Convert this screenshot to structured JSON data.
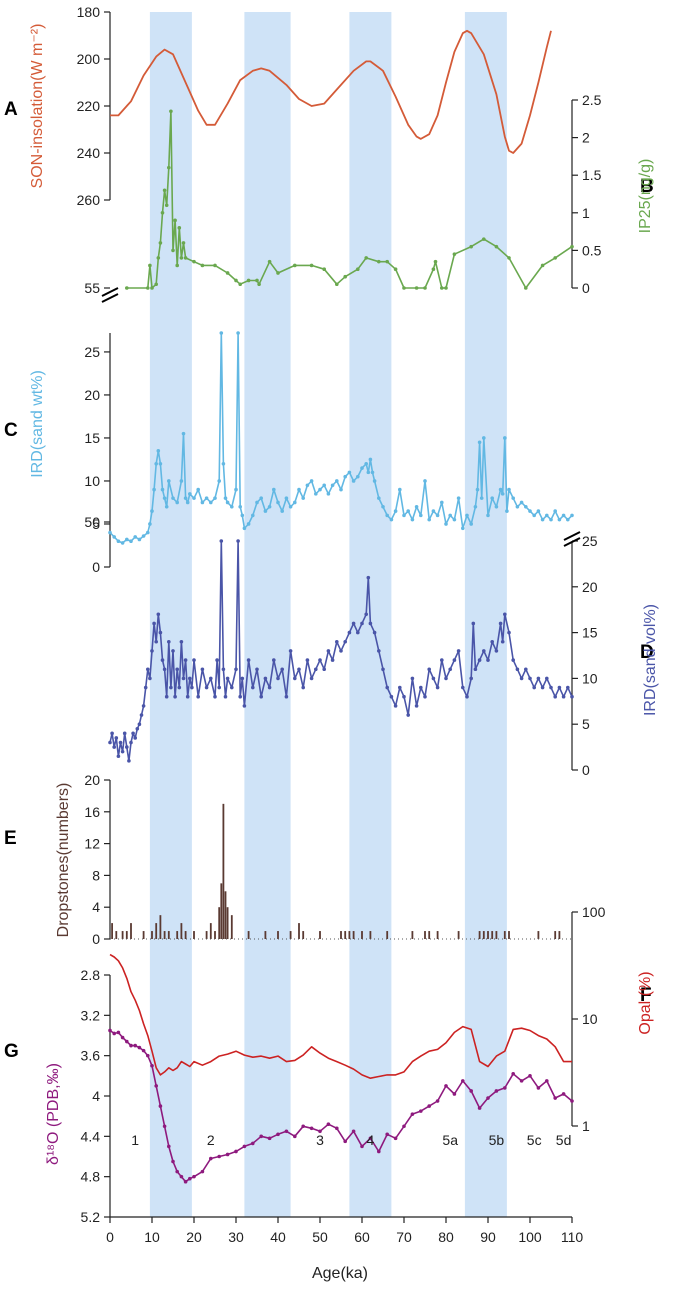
{
  "chart_data": [
    {
      "panel": "A",
      "type": "line",
      "ylabel": "SON-insolation(W m⁻²)",
      "y_reversed": true,
      "ylim": [
        180,
        260
      ],
      "yticks": [
        180,
        200,
        220,
        240,
        260
      ],
      "color": "#d45b38",
      "x": [
        0,
        2,
        5,
        8,
        11,
        13,
        15,
        18,
        21,
        23,
        25,
        28,
        31,
        34,
        36,
        38,
        42,
        45,
        48,
        51,
        54,
        58,
        61,
        62,
        65,
        68,
        71,
        73,
        74,
        76,
        78,
        80,
        82,
        84,
        85,
        86,
        89,
        92,
        94,
        95,
        96,
        98,
        100,
        102,
        104,
        105
      ],
      "y": [
        224,
        224,
        218,
        207,
        199,
        196,
        198,
        210,
        222,
        228,
        228,
        219,
        209,
        205,
        204,
        205,
        211,
        217,
        220,
        219,
        213,
        205,
        201,
        201,
        205,
        216,
        228,
        233,
        234,
        232,
        224,
        210,
        197,
        189,
        188,
        189,
        198,
        215,
        233,
        239,
        240,
        236,
        224,
        210,
        195,
        188
      ]
    },
    {
      "panel": "B",
      "type": "line",
      "ylabel": "IP25(ng/g)",
      "ylim": [
        0,
        2.5
      ],
      "yticks": [
        0,
        0.5,
        1,
        1.5,
        2,
        2.5
      ],
      "ytick_labels": [
        "0",
        "0.5",
        "1",
        "1.5",
        "2",
        "2.5"
      ],
      "color": "#6aa84f",
      "x": [
        4,
        9,
        9.5,
        10,
        11,
        11.5,
        12,
        12.5,
        13,
        13.5,
        14,
        14.5,
        15,
        15.5,
        16,
        16.5,
        17,
        17.5,
        18,
        20,
        22,
        25,
        28,
        30,
        31,
        33,
        35,
        35.5,
        38,
        40,
        44,
        48,
        51,
        54,
        56,
        59,
        61,
        64,
        66,
        68,
        70,
        73,
        75,
        77,
        77.5,
        79,
        80,
        82,
        86,
        89,
        92,
        95,
        99,
        103,
        106,
        110
      ],
      "y": [
        0,
        0,
        0.3,
        0,
        0.05,
        0.4,
        0.6,
        1.0,
        1.3,
        1.1,
        1.6,
        2.35,
        0.5,
        0.9,
        0.3,
        0.8,
        0.4,
        0.6,
        0.4,
        0.35,
        0.3,
        0.3,
        0.2,
        0.1,
        0.05,
        0.1,
        0.1,
        0.05,
        0.35,
        0.2,
        0.3,
        0.3,
        0.25,
        0.05,
        0.15,
        0.25,
        0.4,
        0.35,
        0.35,
        0.25,
        0,
        0,
        0,
        0.25,
        0.35,
        0,
        0,
        0.45,
        0.55,
        0.65,
        0.55,
        0.4,
        0,
        0.3,
        0.4,
        0.55
      ]
    },
    {
      "panel": "C",
      "type": "line",
      "ylabel": "IRD(sand wt%)",
      "ylim": [
        0,
        50
      ],
      "y_break": [
        28,
        55
      ],
      "yticks": [
        0,
        5,
        10,
        15,
        20,
        25,
        50,
        55
      ],
      "color": "#62b8e3",
      "x": [
        0,
        1,
        2,
        3,
        4,
        5,
        6,
        7,
        8,
        9,
        9.5,
        10,
        10.5,
        11,
        11.5,
        12,
        12.5,
        13,
        13.5,
        14,
        15,
        16,
        17,
        17.5,
        18,
        18.5,
        19,
        20,
        21,
        22,
        23,
        24,
        25,
        26,
        26.5,
        27,
        27.5,
        28,
        29,
        30,
        30.5,
        31,
        31.5,
        32,
        33,
        34,
        35,
        36,
        37,
        38,
        39,
        40,
        41,
        42,
        43,
        44,
        45,
        46,
        47,
        48,
        49,
        50,
        51,
        52,
        53,
        54,
        55,
        56,
        57,
        58,
        59,
        60,
        61,
        61.5,
        62,
        62.5,
        63,
        64,
        65,
        66,
        67,
        68,
        69,
        70,
        71,
        72,
        73,
        74,
        75,
        76,
        77,
        78,
        79,
        80,
        81,
        82,
        83,
        84,
        85,
        86,
        87,
        87.5,
        88,
        88.5,
        89,
        90,
        91,
        92,
        93,
        93.5,
        94,
        94.5,
        95,
        96,
        97,
        98,
        99,
        100,
        101,
        102,
        103,
        104,
        105,
        106,
        107,
        108,
        109,
        110
      ],
      "y": [
        4,
        3.5,
        3,
        2.8,
        3.2,
        3,
        3.5,
        3.2,
        3.6,
        4,
        5,
        6.5,
        9,
        12,
        13.5,
        12,
        9,
        8,
        7,
        10,
        8,
        7.5,
        10,
        15.5,
        8,
        7.5,
        8.5,
        8,
        9,
        7.5,
        8,
        7.5,
        8,
        10,
        29,
        12,
        8,
        7.5,
        7,
        9,
        28,
        7,
        6,
        4.5,
        5,
        6,
        7.5,
        8,
        6.5,
        7,
        9,
        7.5,
        6.5,
        8,
        7,
        7.5,
        9,
        8,
        9.5,
        10,
        8.5,
        9,
        9.5,
        8.5,
        9.5,
        10,
        9,
        10.5,
        11,
        10,
        10.5,
        11.5,
        12,
        11,
        12.5,
        11,
        10,
        8,
        7,
        6,
        5.5,
        6.5,
        9,
        6,
        6.5,
        5.5,
        7,
        6,
        10,
        5.5,
        6.5,
        6,
        7.5,
        5,
        6,
        5.5,
        8,
        4.5,
        6,
        5,
        7,
        9,
        14.5,
        8,
        15,
        6,
        8,
        7,
        9,
        8.5,
        15,
        6.5,
        9,
        8,
        7,
        7.5,
        7,
        6.5,
        6,
        6.5,
        5.5,
        6,
        5.5,
        6.5,
        5.5,
        6,
        5.5,
        6
      ]
    },
    {
      "panel": "D",
      "type": "line",
      "ylabel": "IRD(sand vol%)",
      "ylim": [
        0,
        25
      ],
      "yticks": [
        0,
        5,
        10,
        15,
        20,
        25
      ],
      "color": "#4a55a8",
      "x": [
        0,
        0.5,
        1,
        1.5,
        2,
        2.5,
        3,
        3.5,
        4,
        4.5,
        5,
        5.5,
        6,
        6.5,
        7,
        7.5,
        8,
        8.5,
        9,
        9.5,
        10,
        10.5,
        11,
        11.5,
        12,
        12.5,
        13,
        13.5,
        14,
        14.5,
        15,
        15.5,
        16,
        16.5,
        17,
        17.5,
        18,
        18.5,
        19,
        19.5,
        20,
        21,
        22,
        23,
        24,
        25,
        25.5,
        26,
        26.5,
        27,
        27.5,
        28,
        29,
        30,
        30.5,
        31,
        31.5,
        32,
        33,
        34,
        35,
        36,
        37,
        38,
        39,
        40,
        41,
        42,
        43,
        44,
        45,
        46,
        47,
        48,
        49,
        50,
        51,
        52,
        53,
        54,
        55,
        56,
        57,
        58,
        59,
        60,
        61,
        61.5,
        62,
        63,
        64,
        65,
        66,
        67,
        68,
        69,
        70,
        71,
        72,
        73,
        74,
        75,
        76,
        77,
        78,
        79,
        80,
        81,
        82,
        83,
        84,
        85,
        86,
        86.5,
        87,
        88,
        89,
        90,
        91,
        92,
        93,
        93.5,
        94,
        95,
        96,
        97,
        98,
        99,
        100,
        101,
        102,
        103,
        104,
        105,
        106,
        107,
        108,
        109,
        110
      ],
      "y": [
        3,
        4,
        2.5,
        3.5,
        1.5,
        3,
        2,
        4,
        2.5,
        1,
        3,
        4,
        3.5,
        4.5,
        5,
        6,
        7,
        9,
        11,
        10,
        13,
        16,
        14,
        17,
        15,
        12,
        11,
        8,
        14,
        9,
        13,
        8,
        11,
        9,
        14,
        10,
        12,
        8,
        10,
        9,
        12,
        8,
        11,
        9,
        10,
        8,
        12,
        9,
        25,
        11,
        8,
        10,
        9,
        11,
        25,
        8,
        10,
        7,
        12,
        9,
        11,
        8,
        10,
        9,
        12,
        10,
        11,
        8,
        13,
        10,
        11,
        9,
        12,
        10,
        11,
        12,
        11,
        13,
        12,
        14,
        13,
        14,
        15,
        16,
        15,
        16,
        17,
        21,
        16,
        15,
        13,
        11,
        9,
        8,
        7,
        9,
        8,
        6,
        10,
        7,
        9,
        8,
        11,
        10,
        9,
        12,
        10,
        11,
        12,
        13,
        9,
        8,
        10,
        16,
        11,
        12,
        13,
        12,
        14,
        13,
        16,
        14,
        17,
        15,
        12,
        11,
        10,
        11,
        10,
        9,
        10,
        9,
        10,
        9,
        8,
        9,
        8,
        9,
        8
      ]
    },
    {
      "panel": "E",
      "type": "bar",
      "ylabel": "Dropstones(numbers)",
      "ylim": [
        0,
        20
      ],
      "yticks": [
        0,
        4,
        8,
        12,
        16,
        20
      ],
      "color": "#5a3a32",
      "x": [
        0.5,
        1.5,
        3,
        4,
        5,
        8,
        10,
        11,
        12,
        13,
        14,
        16,
        17,
        18,
        20,
        23,
        24,
        25,
        26,
        26.5,
        27,
        27.5,
        28,
        29,
        33,
        37,
        40,
        43,
        45,
        46,
        50,
        55,
        56,
        57,
        58,
        60,
        62,
        66,
        72,
        75,
        76,
        78,
        83,
        88,
        89,
        90,
        91,
        92,
        94,
        95,
        102,
        106,
        107
      ],
      "values": [
        2,
        1,
        1,
        1,
        2,
        1,
        1,
        2,
        3,
        1,
        1,
        1,
        2,
        1,
        1,
        1,
        2,
        1,
        4,
        7,
        17,
        6,
        4,
        3,
        1,
        1,
        1,
        1,
        2,
        1,
        1,
        1,
        1,
        1,
        1,
        1,
        1,
        1,
        1,
        1,
        1,
        1,
        1,
        1,
        1,
        1,
        1,
        1,
        1,
        1,
        1,
        1,
        1
      ]
    },
    {
      "panel": "F",
      "type": "line",
      "ylabel": "Opal (%)",
      "y_scale": "log",
      "ylim": [
        1,
        100
      ],
      "yticks": [
        1,
        10,
        100
      ],
      "color": "#cc2222",
      "x": [
        0,
        1,
        2,
        3,
        4,
        5,
        6,
        7,
        8,
        9,
        10,
        11,
        12,
        13,
        14,
        15,
        16,
        17,
        18,
        19,
        20,
        22,
        24,
        26,
        28,
        30,
        32,
        34,
        36,
        38,
        40,
        42,
        44,
        46,
        48,
        50,
        52,
        54,
        56,
        58,
        60,
        62,
        64,
        66,
        68,
        70,
        72,
        74,
        76,
        78,
        80,
        82,
        84,
        86,
        88,
        90,
        92,
        94,
        96,
        98,
        100,
        102,
        104,
        106,
        108,
        110
      ],
      "y": [
        40,
        38,
        35,
        30,
        24,
        18,
        15,
        12,
        9,
        7,
        5,
        3.5,
        3,
        3.2,
        3.5,
        3.3,
        3.5,
        4,
        3.8,
        3.6,
        4,
        3.7,
        4,
        4.5,
        4.7,
        5,
        4.6,
        4.4,
        4.5,
        4.3,
        4.5,
        4,
        4.1,
        4.6,
        5.5,
        4.8,
        4.3,
        4,
        3.7,
        3.4,
        3,
        2.8,
        2.9,
        3,
        3,
        3.2,
        4,
        4.5,
        5,
        5.2,
        6,
        7.5,
        8.5,
        8,
        4,
        3.6,
        4.5,
        5,
        8,
        8.2,
        7.8,
        7,
        6.5,
        5.5,
        4,
        4
      ]
    },
    {
      "panel": "G",
      "type": "line",
      "ylabel": "δ¹⁸O (PDB,‰)",
      "y_reversed": true,
      "ylim": [
        2.8,
        5.2
      ],
      "yticks": [
        2.8,
        3.2,
        3.6,
        4,
        4.4,
        4.8,
        5.2
      ],
      "ytick_labels": [
        "2.8",
        "3.2",
        "3.6",
        "4",
        "4.4",
        "4.8",
        "5.2"
      ],
      "color": "#8e1a7e",
      "x": [
        0,
        1,
        2,
        3,
        4,
        5,
        6,
        7,
        8,
        9,
        10,
        11,
        12,
        13,
        14,
        15,
        16,
        17,
        18,
        19,
        20,
        22,
        24,
        26,
        28,
        30,
        32,
        34,
        36,
        38,
        40,
        42,
        44,
        46,
        48,
        50,
        52,
        54,
        56,
        58,
        60,
        62,
        64,
        66,
        68,
        70,
        72,
        74,
        76,
        78,
        80,
        82,
        84,
        86,
        88,
        90,
        92,
        94,
        96,
        98,
        100,
        102,
        104,
        106,
        108,
        110
      ],
      "y": [
        3.35,
        3.38,
        3.37,
        3.42,
        3.46,
        3.5,
        3.5,
        3.52,
        3.55,
        3.6,
        3.7,
        3.9,
        4.1,
        4.3,
        4.5,
        4.65,
        4.75,
        4.8,
        4.85,
        4.82,
        4.8,
        4.75,
        4.62,
        4.6,
        4.58,
        4.55,
        4.5,
        4.47,
        4.4,
        4.42,
        4.38,
        4.35,
        4.4,
        4.3,
        4.32,
        4.35,
        4.28,
        4.32,
        4.45,
        4.35,
        4.5,
        4.42,
        4.55,
        4.38,
        4.42,
        4.3,
        4.18,
        4.15,
        4.1,
        4.05,
        3.9,
        3.98,
        3.85,
        3.95,
        4.12,
        4.02,
        3.95,
        3.92,
        3.78,
        3.85,
        3.8,
        3.92,
        3.85,
        4.02,
        3.98,
        4.05
      ]
    }
  ],
  "x_axis": {
    "label": "Age(ka)",
    "range": [
      0,
      110
    ],
    "ticks": [
      0,
      10,
      20,
      30,
      40,
      50,
      60,
      70,
      80,
      90,
      100,
      110
    ]
  },
  "shaded_bands_ka": [
    [
      9.5,
      19.5
    ],
    [
      32,
      43
    ],
    [
      57,
      67
    ],
    [
      84.5,
      94.5
    ]
  ],
  "stage_labels": [
    {
      "text": "1",
      "x": 6
    },
    {
      "text": "2",
      "x": 24
    },
    {
      "text": "3",
      "x": 50
    },
    {
      "text": "4",
      "x": 62
    },
    {
      "text": "5a",
      "x": 81
    },
    {
      "text": "5b",
      "x": 92
    },
    {
      "text": "5c",
      "x": 101
    },
    {
      "text": "5d",
      "x": 108
    }
  ],
  "panel_letters": [
    "A",
    "B",
    "C",
    "D",
    "E",
    "F",
    "G"
  ]
}
